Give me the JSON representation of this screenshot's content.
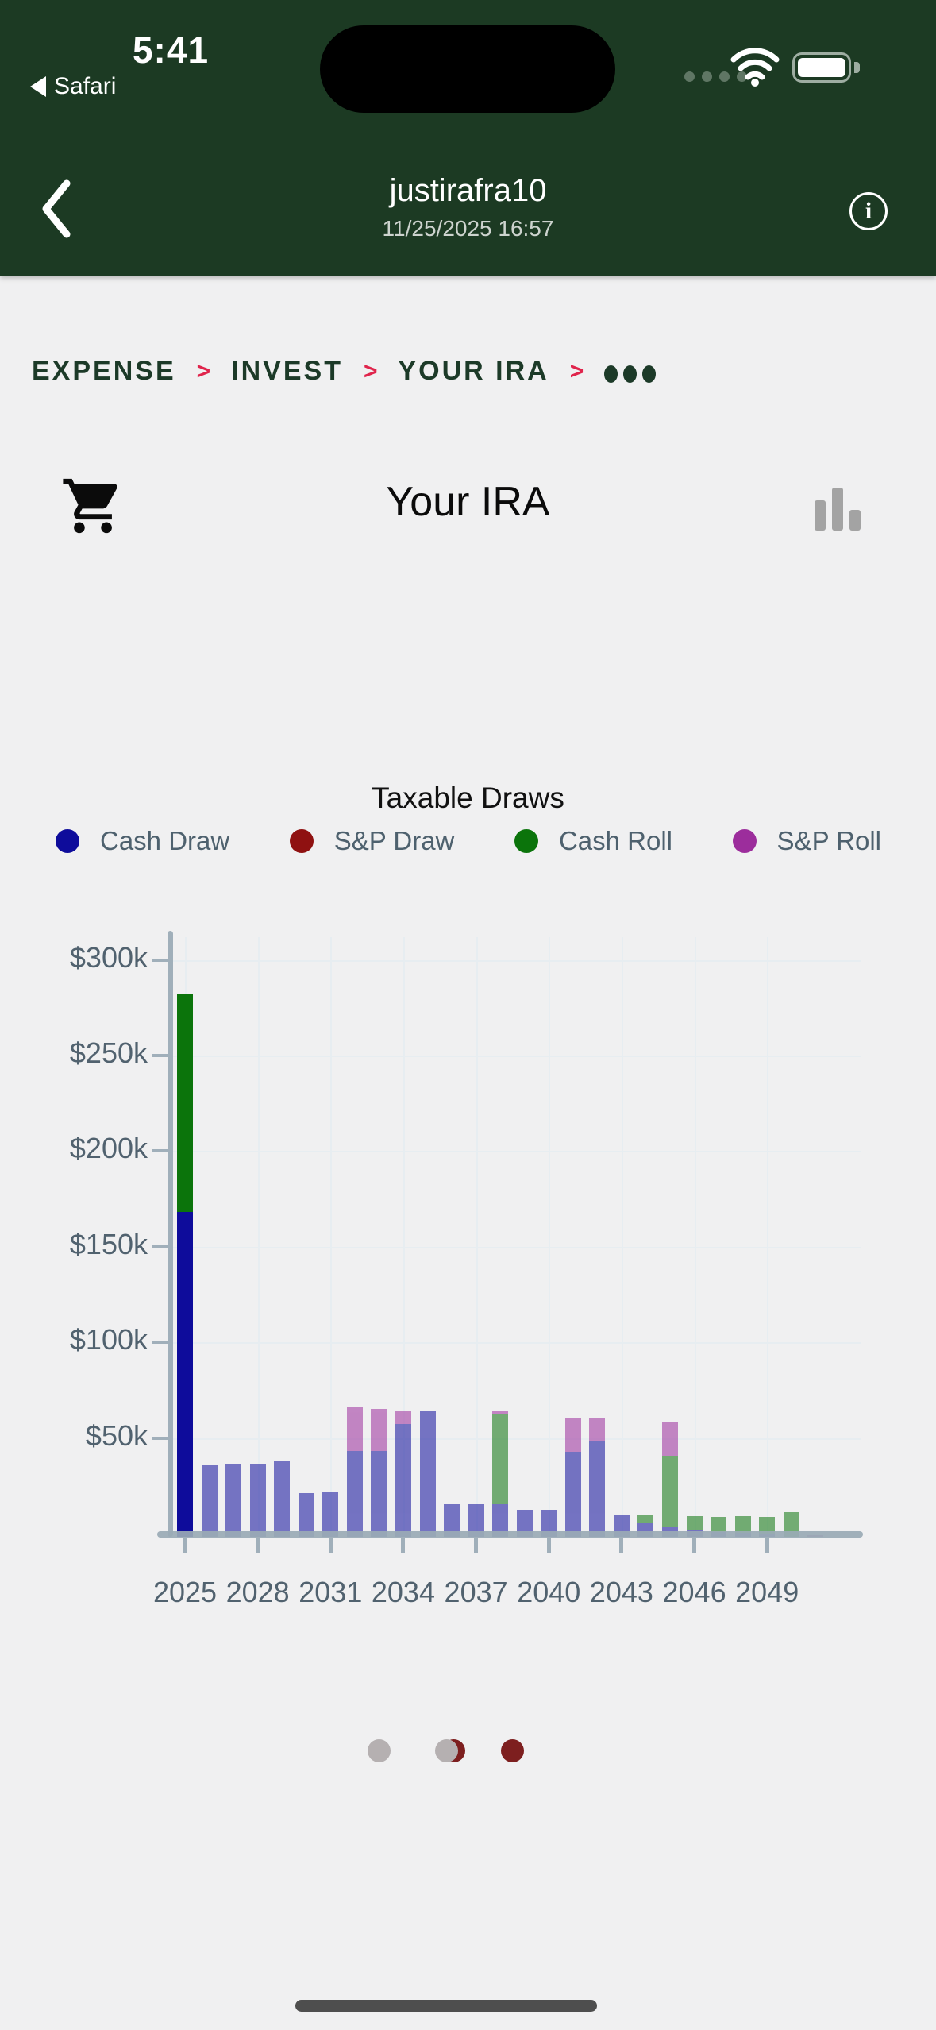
{
  "status_bar": {
    "time": "5:41",
    "back_app": "Safari"
  },
  "header": {
    "title": "justirafra10",
    "subtitle": "11/25/2025 16:57",
    "info_label": "i"
  },
  "breadcrumb": {
    "items": [
      "EXPENSE",
      "INVEST",
      "YOUR IRA"
    ],
    "separator": ">",
    "overflow": "ellipsis-dots"
  },
  "page": {
    "title": "Your IRA"
  },
  "chart_data": {
    "type": "bar",
    "stacked": true,
    "title": "Taxable Draws",
    "unit": "thousand_usd",
    "ylim": [
      0,
      315
    ],
    "grid": true,
    "legend_position": "top",
    "highlighted_year": 2025,
    "legend": [
      {
        "label": "Cash Draw",
        "color": "#0e0c9b"
      },
      {
        "label": "S&P Draw",
        "color": "#8f1111"
      },
      {
        "label": "Cash Roll",
        "color": "#0b740b"
      },
      {
        "label": "S&P Roll",
        "color": "#9c2d9c"
      }
    ],
    "y_ticks": [
      {
        "label": "$300k",
        "value": 300
      },
      {
        "label": "$250k",
        "value": 250
      },
      {
        "label": "$200k",
        "value": 200
      },
      {
        "label": "$150k",
        "value": 150
      },
      {
        "label": "$100k",
        "value": 100
      },
      {
        "label": "$50k",
        "value": 50
      }
    ],
    "x_tick_years": [
      2025,
      2028,
      2031,
      2034,
      2037,
      2040,
      2043,
      2046,
      2049
    ],
    "years": [
      2025,
      2026,
      2027,
      2028,
      2029,
      2030,
      2031,
      2032,
      2033,
      2034,
      2035,
      2036,
      2037,
      2038,
      2039,
      2040,
      2041,
      2042,
      2043,
      2044,
      2045,
      2046,
      2047,
      2048,
      2049,
      2050,
      2051
    ],
    "series": [
      {
        "name": "Cash Draw",
        "values": [
          170,
          37.5,
          38,
          38,
          40,
          23,
          23.5,
          45,
          45,
          59,
          66,
          17,
          17,
          17,
          14,
          14,
          44.5,
          50,
          11.5,
          7.5,
          5,
          3.5,
          2.5,
          2,
          1.5,
          0,
          0
        ]
      },
      {
        "name": "S&P Draw",
        "values": [
          0,
          0,
          0,
          0,
          0,
          0,
          0,
          0,
          0,
          0,
          0,
          0,
          0,
          0,
          0,
          0,
          0,
          0,
          0,
          0,
          0,
          0,
          0,
          0,
          0,
          0,
          0
        ]
      },
      {
        "name": "Cash Roll",
        "values": [
          114,
          0,
          0,
          0,
          0,
          0,
          0,
          0,
          0,
          0,
          0,
          0,
          0,
          47.5,
          0,
          0,
          0,
          0,
          0,
          4,
          37.5,
          7.5,
          8,
          9,
          9,
          12.7,
          0
        ]
      },
      {
        "name": "S&P Roll",
        "values": [
          0,
          0,
          0,
          0,
          0,
          0,
          0,
          23,
          22,
          7,
          0,
          0,
          0,
          1.5,
          0,
          0,
          18,
          12,
          0,
          0,
          17.5,
          0,
          0,
          0,
          0,
          0,
          0.8
        ]
      }
    ]
  },
  "pager": {
    "dots": [
      "inactive",
      "transition",
      "active"
    ],
    "inactive_color": "#b5b0b1",
    "active_color": "#7d1f1f"
  },
  "colors": {
    "header_bg": "#1c3a23",
    "breadcrumb_text": "#1c3a28",
    "breadcrumb_sep": "#e0244c",
    "axis": "#a0afba",
    "axis_text": "#51626f",
    "background": "#f0f0f1"
  }
}
